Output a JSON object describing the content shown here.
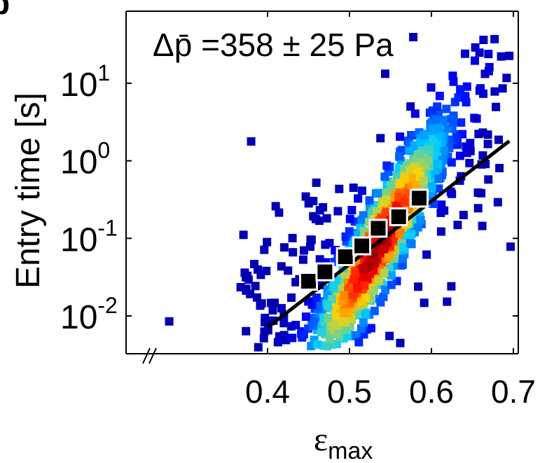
{
  "panel_label": "b",
  "chart_data": {
    "type": "scatter",
    "title": "",
    "annotation": "Δp̄ =358 ± 25 Pa",
    "xlabel": "ε",
    "xlabel_subscript": "max",
    "ylabel": "Entry time [s]",
    "yscale": "log",
    "xlim": [
      0.4,
      0.7
    ],
    "ylim_exponent": [
      -2.5,
      2.0
    ],
    "x_ticks": [
      0.4,
      0.5,
      0.6,
      0.7
    ],
    "x_tick_labels": [
      "0.4",
      "0.5",
      "0.6",
      "0.7"
    ],
    "y_ticks": [
      0.01,
      0.1,
      1,
      10
    ],
    "y_tick_labels": [
      {
        "base": "10",
        "exp": "-2"
      },
      {
        "base": "10",
        "exp": "-1"
      },
      {
        "base": "10",
        "exp": "0"
      },
      {
        "base": "10",
        "exp": "1"
      }
    ],
    "x_axis_break": true,
    "grid": false,
    "colormap": "jet (point density: blue = low, red = high)",
    "point_density": {
      "description": "approximate density clusters of individual events",
      "core": {
        "x": 0.53,
        "y": 0.07
      },
      "outlier": {
        "x": 0.28,
        "y": 0.0085
      }
    },
    "binned_means": {
      "x": [
        0.45,
        0.47,
        0.495,
        0.515,
        0.535,
        0.56,
        0.585
      ],
      "y": [
        0.028,
        0.037,
        0.058,
        0.08,
        0.135,
        0.19,
        0.33
      ]
    },
    "fit_line": {
      "x": [
        0.4,
        0.695
      ],
      "y": [
        0.0071,
        1.8
      ]
    }
  }
}
